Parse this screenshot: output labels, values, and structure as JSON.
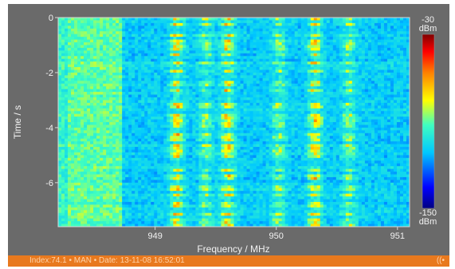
{
  "chart_data": {
    "type": "heatmap",
    "xlabel": "Frequency / MHz",
    "ylabel": "Time / s",
    "xlim": [
      948.2,
      951.1
    ],
    "ylim": [
      -7.6,
      0
    ],
    "x_ticks": [
      949,
      950,
      951
    ],
    "y_ticks": [
      0,
      -2,
      -4,
      -6
    ],
    "colorbar": {
      "max_label": "-30",
      "min_label": "-150",
      "unit": "dBm",
      "range": [
        -150,
        -30
      ],
      "colors": [
        "#000080",
        "#0000ff",
        "#00c8ff",
        "#40ffc0",
        "#ffff00",
        "#ff8000",
        "#ff0000",
        "#800000"
      ]
    },
    "signal_bands_mhz": [
      949.18,
      949.42,
      949.6,
      950.02,
      950.32,
      950.6
    ]
  },
  "status": {
    "text": "Index:74.1 • MAN • Date: 13-11-08 16:52:01",
    "icon": "signal-icon",
    "icon_glyph": "((•"
  },
  "colors": {
    "panel": "#6a6a6a",
    "statusbar": "#e8791e",
    "background_level": "#2fc3d8"
  }
}
